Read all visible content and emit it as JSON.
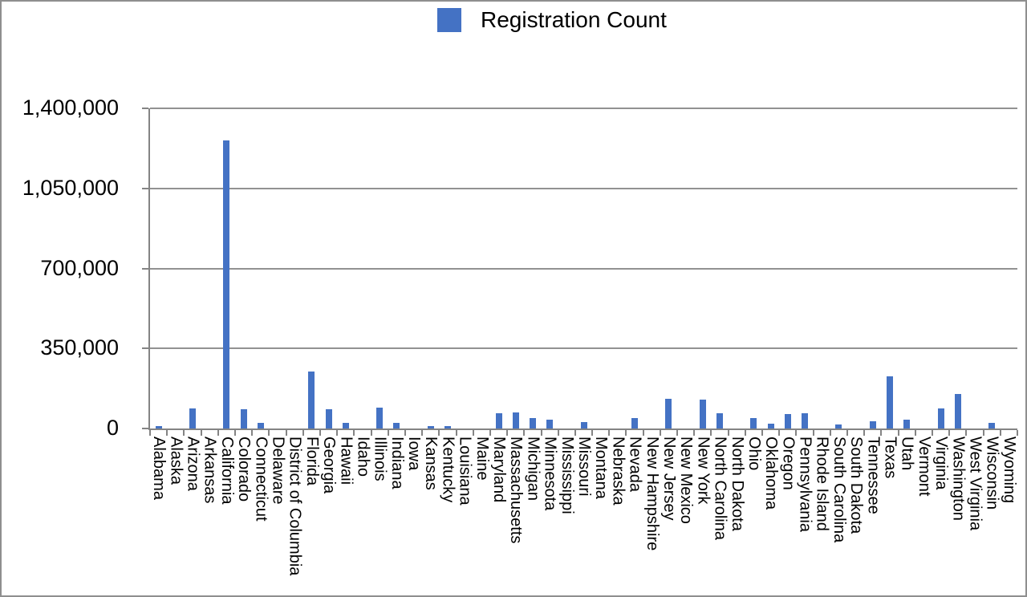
{
  "legend": {
    "label": "Registration Count"
  },
  "colors": {
    "bar": "#4472C4",
    "legend_marker": "#4472C4",
    "axis": "#848484",
    "gridline": "#929292",
    "tick": "#848484",
    "text": "#000000",
    "background": "#ffffff",
    "border": "#8f8f8f"
  },
  "chart_data": {
    "type": "bar",
    "title": "",
    "xlabel": "",
    "ylabel": "",
    "legend_label": "Registration Count",
    "legend_position": "top-center",
    "grid": true,
    "ylim": [
      0,
      1400000
    ],
    "yticks": [
      0,
      350000,
      700000,
      1050000,
      1400000
    ],
    "ytick_labels": [
      "0",
      "350,000",
      "700,000",
      "1,050,000",
      "1,400,000"
    ],
    "categories": [
      "Alabama",
      "Alaska",
      "Arizona",
      "Arkansas",
      "California",
      "Colorado",
      "Connecticut",
      "Delaware",
      "District of Columbia",
      "Florida",
      "Georgia",
      "Hawaii",
      "Idaho",
      "Illinois",
      "Indiana",
      "Iowa",
      "Kansas",
      "Kentucky",
      "Louisiana",
      "Maine",
      "Maryland",
      "Massachusetts",
      "Michigan",
      "Minnesota",
      "Mississippi",
      "Missouri",
      "Montana",
      "Nebraska",
      "Nevada",
      "New Hampshire",
      "New Jersey",
      "New Mexico",
      "New York",
      "North Carolina",
      "North Dakota",
      "Ohio",
      "Oklahoma",
      "Oregon",
      "Pennsylvania",
      "Rhode Island",
      "South Carolina",
      "South Dakota",
      "Tennessee",
      "Texas",
      "Utah",
      "Vermont",
      "Virginia",
      "Washington",
      "West Virginia",
      "Wisconsin",
      "Wyoming"
    ],
    "values": [
      10000,
      0,
      86000,
      0,
      1258000,
      84000,
      25000,
      0,
      0,
      250000,
      85000,
      26000,
      0,
      92000,
      25000,
      0,
      10000,
      11000,
      0,
      0,
      65000,
      70000,
      47000,
      39000,
      0,
      29000,
      0,
      0,
      45000,
      0,
      131000,
      0,
      126000,
      65000,
      0,
      47000,
      21000,
      63000,
      67000,
      0,
      19000,
      0,
      33000,
      227000,
      39000,
      0,
      86000,
      150000,
      0,
      23000,
      0
    ]
  }
}
